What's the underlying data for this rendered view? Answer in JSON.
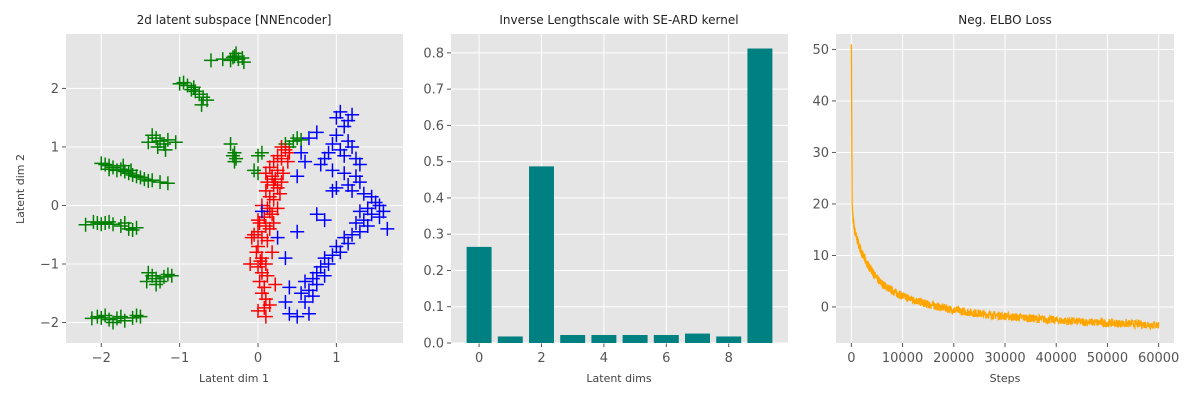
{
  "chart_data": [
    {
      "type": "scatter",
      "title": "2d latent subspace [NNEncoder]",
      "xlabel": "Latent dim 1",
      "ylabel": "Latent dim 2",
      "xlim": [
        -2.45,
        1.85
      ],
      "ylim": [
        -2.35,
        2.93
      ],
      "xticks": [
        -2,
        -1,
        0,
        1
      ],
      "yticks": [
        -2,
        -1,
        0,
        1,
        2
      ],
      "marker": "+",
      "grid": true,
      "series": [
        {
          "color": "#008000",
          "points": [
            [
              -0.3,
              2.55
            ],
            [
              -0.25,
              2.5
            ],
            [
              -0.2,
              2.52
            ],
            [
              -0.35,
              2.48
            ],
            [
              -0.28,
              2.6
            ],
            [
              -0.45,
              2.5
            ],
            [
              -0.18,
              2.45
            ],
            [
              -0.32,
              2.53
            ],
            [
              -0.6,
              2.48
            ],
            [
              -0.9,
              2.05
            ],
            [
              -0.85,
              1.98
            ],
            [
              -0.8,
              1.95
            ],
            [
              -0.75,
              1.9
            ],
            [
              -0.7,
              1.85
            ],
            [
              -0.95,
              2.1
            ],
            [
              -0.65,
              1.8
            ],
            [
              -0.82,
              2.02
            ],
            [
              -0.72,
              1.72
            ],
            [
              -1.0,
              2.08
            ],
            [
              -1.3,
              1.15
            ],
            [
              -1.25,
              1.1
            ],
            [
              -1.2,
              1.05
            ],
            [
              -1.15,
              1.12
            ],
            [
              -1.35,
              1.2
            ],
            [
              -1.05,
              1.08
            ],
            [
              -1.28,
              1.0
            ],
            [
              -1.18,
              0.95
            ],
            [
              -1.4,
              1.08
            ],
            [
              -0.35,
              1.05
            ],
            [
              -0.3,
              0.9
            ],
            [
              -0.32,
              0.85
            ],
            [
              -0.28,
              0.8
            ],
            [
              -0.3,
              0.75
            ],
            [
              -2.0,
              0.72
            ],
            [
              -1.95,
              0.7
            ],
            [
              -1.9,
              0.68
            ],
            [
              -1.85,
              0.65
            ],
            [
              -1.8,
              0.6
            ],
            [
              -1.75,
              0.62
            ],
            [
              -1.7,
              0.58
            ],
            [
              -1.65,
              0.55
            ],
            [
              -1.6,
              0.52
            ],
            [
              -1.55,
              0.5
            ],
            [
              -1.5,
              0.48
            ],
            [
              -1.45,
              0.45
            ],
            [
              -1.4,
              0.42
            ],
            [
              -1.35,
              0.43
            ],
            [
              -1.25,
              0.4
            ],
            [
              -1.15,
              0.38
            ],
            [
              -1.9,
              0.62
            ],
            [
              -1.72,
              0.68
            ],
            [
              -1.62,
              0.6
            ],
            [
              -2.1,
              -0.28
            ],
            [
              -2.05,
              -0.3
            ],
            [
              -2.0,
              -0.32
            ],
            [
              -1.95,
              -0.3
            ],
            [
              -1.9,
              -0.28
            ],
            [
              -1.85,
              -0.32
            ],
            [
              -1.75,
              -0.35
            ],
            [
              -1.65,
              -0.4
            ],
            [
              -1.6,
              -0.42
            ],
            [
              -1.55,
              -0.38
            ],
            [
              -2.2,
              -0.33
            ],
            [
              -1.7,
              -0.3
            ],
            [
              -1.4,
              -1.15
            ],
            [
              -1.35,
              -1.2
            ],
            [
              -1.3,
              -1.25
            ],
            [
              -1.25,
              -1.3
            ],
            [
              -1.2,
              -1.22
            ],
            [
              -1.15,
              -1.18
            ],
            [
              -1.42,
              -1.3
            ],
            [
              -1.3,
              -1.35
            ],
            [
              -1.1,
              -1.2
            ],
            [
              -2.05,
              -1.9
            ],
            [
              -2.0,
              -1.92
            ],
            [
              -1.95,
              -1.88
            ],
            [
              -1.9,
              -1.95
            ],
            [
              -1.85,
              -2.0
            ],
            [
              -1.8,
              -1.93
            ],
            [
              -1.75,
              -1.9
            ],
            [
              -1.7,
              -1.97
            ],
            [
              -1.6,
              -1.92
            ],
            [
              -1.55,
              -1.88
            ],
            [
              -1.5,
              -1.9
            ],
            [
              -2.12,
              -1.93
            ],
            [
              0.4,
              1.0
            ],
            [
              0.45,
              1.1
            ],
            [
              0.5,
              1.15
            ],
            [
              0.55,
              1.12
            ],
            [
              0.35,
              1.05
            ],
            [
              0.05,
              0.9
            ],
            [
              0.0,
              0.85
            ],
            [
              -0.05,
              0.6
            ],
            [
              0.0,
              0.55
            ]
          ]
        },
        {
          "color": "#ff0000",
          "points": [
            [
              0.3,
              1.0
            ],
            [
              0.35,
              0.95
            ],
            [
              0.25,
              0.85
            ],
            [
              0.3,
              0.8
            ],
            [
              0.2,
              0.75
            ],
            [
              0.15,
              0.65
            ],
            [
              0.25,
              0.6
            ],
            [
              0.18,
              0.5
            ],
            [
              0.12,
              0.4
            ],
            [
              0.2,
              0.35
            ],
            [
              0.25,
              0.3
            ],
            [
              0.1,
              0.25
            ],
            [
              0.15,
              0.15
            ],
            [
              0.2,
              0.1
            ],
            [
              0.05,
              0.0
            ],
            [
              0.12,
              -0.05
            ],
            [
              0.18,
              -0.15
            ],
            [
              0.08,
              -0.2
            ],
            [
              0.02,
              -0.3
            ],
            [
              0.1,
              -0.35
            ],
            [
              0.15,
              -0.4
            ],
            [
              0.0,
              -0.45
            ],
            [
              0.05,
              -0.55
            ],
            [
              0.12,
              -0.6
            ],
            [
              0.0,
              -0.7
            ],
            [
              -0.02,
              -0.8
            ],
            [
              0.05,
              -0.9
            ],
            [
              0.1,
              -1.0
            ],
            [
              0.0,
              -1.05
            ],
            [
              0.05,
              -1.15
            ],
            [
              0.12,
              -1.2
            ],
            [
              0.02,
              -1.3
            ],
            [
              0.08,
              -1.4
            ],
            [
              0.05,
              -1.5
            ],
            [
              0.1,
              -1.6
            ],
            [
              0.08,
              -1.75
            ],
            [
              0.0,
              -1.8
            ],
            [
              0.1,
              -1.9
            ],
            [
              -0.05,
              -0.5
            ],
            [
              -0.08,
              -0.55
            ],
            [
              -0.1,
              -1.0
            ],
            [
              0.22,
              0.45
            ],
            [
              0.28,
              0.2
            ],
            [
              0.32,
              0.55
            ],
            [
              0.4,
              0.9
            ],
            [
              0.2,
              -0.3
            ],
            [
              0.18,
              -0.8
            ],
            [
              0.22,
              -1.35
            ],
            [
              0.15,
              -0.1
            ],
            [
              0.1,
              0.55
            ],
            [
              0.38,
              0.75
            ],
            [
              0.3,
              0.4
            ],
            [
              0.25,
              -0.05
            ],
            [
              0.15,
              -1.7
            ],
            [
              0.03,
              -0.95
            ],
            [
              0.0,
              -0.25
            ]
          ]
        },
        {
          "color": "#0000ff",
          "points": [
            [
              1.2,
              1.55
            ],
            [
              1.1,
              1.35
            ],
            [
              1.0,
              1.2
            ],
            [
              1.15,
              1.1
            ],
            [
              0.95,
              1.05
            ],
            [
              1.2,
              1.0
            ],
            [
              1.05,
              0.95
            ],
            [
              0.9,
              0.9
            ],
            [
              1.1,
              0.85
            ],
            [
              1.25,
              0.8
            ],
            [
              0.85,
              0.8
            ],
            [
              0.75,
              1.25
            ],
            [
              0.65,
              1.15
            ],
            [
              0.55,
              0.9
            ],
            [
              0.8,
              0.7
            ],
            [
              0.95,
              0.6
            ],
            [
              1.1,
              0.55
            ],
            [
              1.25,
              0.5
            ],
            [
              1.3,
              0.4
            ],
            [
              1.15,
              0.35
            ],
            [
              1.0,
              0.3
            ],
            [
              1.2,
              0.25
            ],
            [
              1.35,
              0.2
            ],
            [
              1.45,
              0.15
            ],
            [
              1.5,
              0.05
            ],
            [
              1.55,
              0.0
            ],
            [
              1.4,
              -0.05
            ],
            [
              1.3,
              -0.1
            ],
            [
              1.45,
              -0.15
            ],
            [
              1.55,
              -0.2
            ],
            [
              1.35,
              -0.25
            ],
            [
              1.25,
              -0.3
            ],
            [
              1.4,
              -0.35
            ],
            [
              1.3,
              -0.45
            ],
            [
              1.2,
              -0.5
            ],
            [
              1.1,
              -0.55
            ],
            [
              1.15,
              -0.65
            ],
            [
              1.0,
              -0.7
            ],
            [
              1.05,
              -0.8
            ],
            [
              0.95,
              -0.85
            ],
            [
              0.85,
              -0.9
            ],
            [
              0.9,
              -1.0
            ],
            [
              0.8,
              -1.05
            ],
            [
              0.75,
              -1.15
            ],
            [
              0.85,
              -1.2
            ],
            [
              0.7,
              -1.25
            ],
            [
              0.6,
              -1.3
            ],
            [
              0.75,
              -1.35
            ],
            [
              0.65,
              -1.45
            ],
            [
              0.55,
              -1.5
            ],
            [
              0.7,
              -1.55
            ],
            [
              0.6,
              -1.65
            ],
            [
              0.4,
              -1.4
            ],
            [
              0.35,
              -1.65
            ],
            [
              0.4,
              -1.85
            ],
            [
              0.5,
              -1.9
            ],
            [
              0.65,
              -1.85
            ],
            [
              1.65,
              -0.4
            ],
            [
              1.6,
              -0.1
            ],
            [
              0.75,
              -0.15
            ],
            [
              0.85,
              -0.25
            ],
            [
              0.5,
              -0.45
            ],
            [
              0.35,
              -0.9
            ],
            [
              0.25,
              -0.55
            ],
            [
              0.05,
              -0.1
            ],
            [
              0.95,
              0.25
            ],
            [
              0.6,
              0.75
            ],
            [
              0.5,
              0.5
            ],
            [
              1.3,
              0.7
            ],
            [
              1.0,
              1.5
            ],
            [
              1.05,
              1.6
            ],
            [
              1.15,
              1.45
            ]
          ]
        }
      ]
    },
    {
      "type": "bar",
      "title": "Inverse Lengthscale with SE-ARD kernel",
      "xlabel": "Latent dims",
      "ylabel": "",
      "categories": [
        0,
        1,
        2,
        3,
        4,
        5,
        6,
        7,
        8,
        9
      ],
      "values": [
        0.265,
        0.018,
        0.487,
        0.022,
        0.022,
        0.022,
        0.022,
        0.026,
        0.018,
        0.812
      ],
      "color": "#008080",
      "xlim": [
        -0.9,
        9.9
      ],
      "ylim": [
        0,
        0.852
      ],
      "xticks": [
        0,
        2,
        4,
        6,
        8
      ],
      "yticks": [
        0.0,
        0.1,
        0.2,
        0.3,
        0.4,
        0.5,
        0.6,
        0.7,
        0.8
      ],
      "grid": true
    },
    {
      "type": "line",
      "title": "Neg. ELBO Loss",
      "xlabel": "Steps",
      "ylabel": "",
      "color": "#ffa500",
      "x": [
        0,
        150,
        300,
        600,
        1000,
        1500,
        2000,
        2500,
        3000,
        4000,
        5000,
        6000,
        7000,
        8000,
        9000,
        10000,
        12000,
        15000,
        20000,
        25000,
        30000,
        35000,
        40000,
        45000,
        50000,
        55000,
        60000
      ],
      "y": [
        51,
        20,
        17.5,
        15,
        13.5,
        12,
        10.5,
        9.5,
        8.5,
        7,
        5.5,
        4.5,
        3.8,
        3.2,
        2.6,
        2.1,
        1.4,
        0.5,
        -0.6,
        -1.3,
        -1.8,
        -2.2,
        -2.6,
        -2.9,
        -3.1,
        -3.3,
        -3.5
      ],
      "noise_band": 0.8,
      "xlim": [
        -3000,
        63000
      ],
      "ylim": [
        -7,
        53
      ],
      "xticks": [
        0,
        10000,
        20000,
        30000,
        40000,
        50000,
        60000
      ],
      "yticks": [
        0,
        10,
        20,
        30,
        40,
        50
      ],
      "grid": true
    }
  ]
}
